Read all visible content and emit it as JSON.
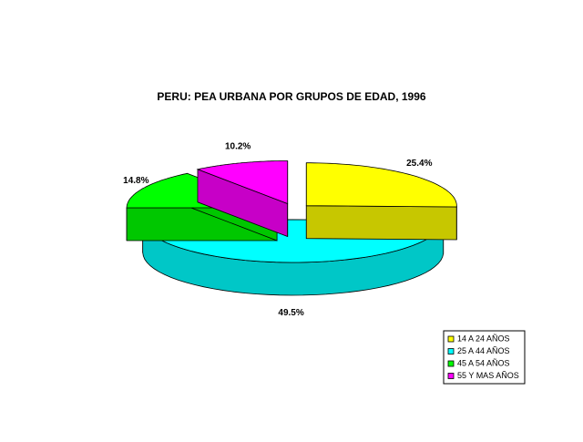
{
  "chart_data": {
    "type": "pie",
    "title": "PERU: PEA URBANA POR GRUPOS DE EDAD, 1996",
    "categories": [
      "14 A 24 AÑOS",
      "25 A 44 AÑOS",
      "45 A 54 AÑOS",
      "55 Y MAS AÑOS"
    ],
    "values": [
      25.4,
      49.5,
      14.8,
      10.2
    ],
    "value_labels": [
      "25.4%",
      "49.5%",
      "14.8%",
      "10.2%"
    ],
    "colors": [
      "#ffff00",
      "#00ffff",
      "#00ff00",
      "#ff00ff"
    ],
    "legend": "bottom-right"
  }
}
